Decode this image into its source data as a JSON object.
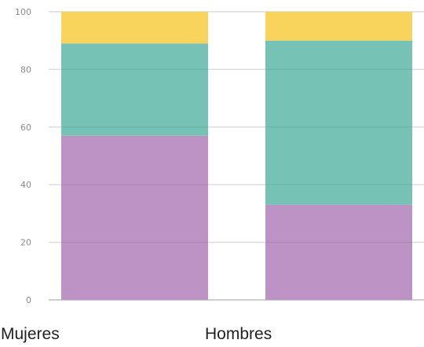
{
  "chart_data": {
    "type": "bar",
    "stacked": true,
    "title": "",
    "xlabel": "",
    "ylabel": "",
    "categories": [
      "Mujeres",
      "Hombres"
    ],
    "ylim": [
      0,
      100
    ],
    "yticks": [
      "0",
      "20",
      "40",
      "60",
      "80",
      "100"
    ],
    "grid": true,
    "legend": "none",
    "series": [
      {
        "values": [
          57,
          33
        ],
        "color": "#bc93c4"
      },
      {
        "values": [
          32,
          57
        ],
        "color": "#76c2b5"
      },
      {
        "values": [
          11,
          10
        ],
        "color": "#f8d45c"
      }
    ]
  }
}
